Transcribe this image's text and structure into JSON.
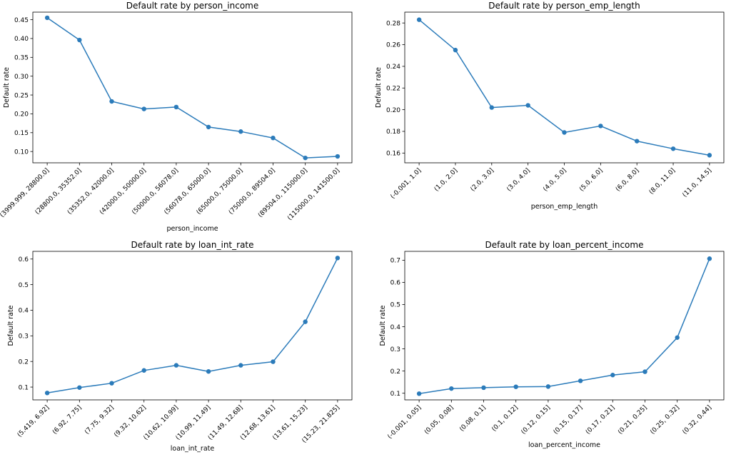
{
  "chart_data": [
    {
      "type": "line",
      "title": "Default rate by person_income",
      "xlabel": "person_income",
      "ylabel": "Default rate",
      "categories": [
        "(3999.999, 28800.0]",
        "(28800.0, 35352.0]",
        "(35352.0, 42000.0]",
        "(42000.0, 50000.0]",
        "(50000.0, 56078.0]",
        "(56078.0, 65000.0]",
        "(65000.0, 75000.0]",
        "(75000.0, 89504.0]",
        "(89504.0, 115000.0]",
        "(115000.0, 141500.0]"
      ],
      "values": [
        0.455,
        0.396,
        0.233,
        0.213,
        0.218,
        0.165,
        0.153,
        0.136,
        0.083,
        0.087
      ],
      "ylim": [
        0.07,
        0.47
      ],
      "yticks": [
        0.1,
        0.15,
        0.2,
        0.25,
        0.3,
        0.35,
        0.4,
        0.45
      ],
      "ytick_labels": [
        "0.10",
        "0.15",
        "0.20",
        "0.25",
        "0.30",
        "0.35",
        "0.40",
        "0.45"
      ],
      "grid": false,
      "color": "#2b7bba"
    },
    {
      "type": "line",
      "title": "Default rate by person_emp_length",
      "xlabel": "person_emp_length",
      "ylabel": "Default rate",
      "categories": [
        "(-0.001, 1.0]",
        "(1.0, 2.0]",
        "(2.0, 3.0]",
        "(3.0, 4.0]",
        "(4.0, 5.0]",
        "(5.0, 6.0]",
        "(6.0, 8.0]",
        "(8.0, 11.0]",
        "(11.0, 14.5]"
      ],
      "values": [
        0.283,
        0.255,
        0.202,
        0.204,
        0.179,
        0.185,
        0.171,
        0.164,
        0.158
      ],
      "ylim": [
        0.151,
        0.29
      ],
      "yticks": [
        0.16,
        0.18,
        0.2,
        0.22,
        0.24,
        0.26,
        0.28
      ],
      "ytick_labels": [
        "0.16",
        "0.18",
        "0.20",
        "0.22",
        "0.24",
        "0.26",
        "0.28"
      ],
      "grid": false,
      "color": "#2b7bba"
    },
    {
      "type": "line",
      "title": "Default rate by loan_int_rate",
      "xlabel": "loan_int_rate",
      "ylabel": "Default rate",
      "categories": [
        "(5.419, 6.92]",
        "(6.92, 7.75]",
        "(7.75, 9.32]",
        "(9.32, 10.62]",
        "(10.62, 10.99]",
        "(10.99, 11.49]",
        "(11.49, 12.68]",
        "(12.68, 13.61]",
        "(13.61, 15.23]",
        "(15.23, 21.825]"
      ],
      "values": [
        0.077,
        0.098,
        0.115,
        0.165,
        0.185,
        0.161,
        0.185,
        0.199,
        0.355,
        0.604
      ],
      "ylim": [
        0.05,
        0.63
      ],
      "yticks": [
        0.1,
        0.2,
        0.3,
        0.4,
        0.5,
        0.6
      ],
      "ytick_labels": [
        "0.1",
        "0.2",
        "0.3",
        "0.4",
        "0.5",
        "0.6"
      ],
      "grid": false,
      "color": "#2b7bba"
    },
    {
      "type": "line",
      "title": "Default rate by loan_percent_income",
      "xlabel": "loan_percent_income",
      "ylabel": "Default rate",
      "categories": [
        "(-0.001, 0.05]",
        "(0.05, 0.08]",
        "(0.08, 0.1]",
        "(0.1, 0.12]",
        "(0.12, 0.15]",
        "(0.15, 0.17]",
        "(0.17, 0.21]",
        "(0.21, 0.25]",
        "(0.25, 0.32]",
        "(0.32, 0.44]"
      ],
      "values": [
        0.098,
        0.121,
        0.125,
        0.129,
        0.13,
        0.156,
        0.182,
        0.197,
        0.351,
        0.707
      ],
      "ylim": [
        0.07,
        0.74
      ],
      "yticks": [
        0.1,
        0.2,
        0.3,
        0.4,
        0.5,
        0.6,
        0.7
      ],
      "ytick_labels": [
        "0.1",
        "0.2",
        "0.3",
        "0.4",
        "0.5",
        "0.6",
        "0.7"
      ],
      "grid": false,
      "color": "#2b7bba"
    }
  ]
}
